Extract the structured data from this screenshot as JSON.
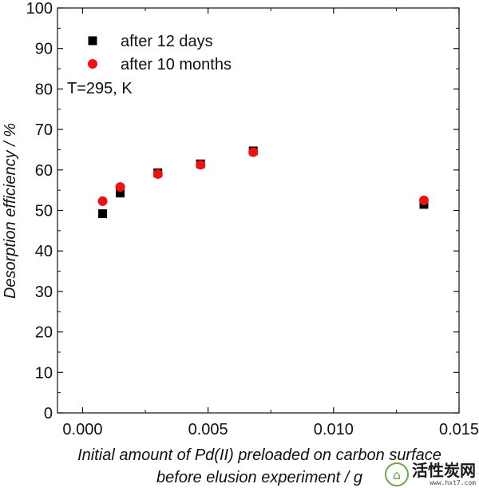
{
  "chart_data": {
    "type": "scatter",
    "title": "",
    "xlabel_lines": [
      "Initial amount of Pd(II) preloaded on carbon surface",
      "before elusion experiment / g"
    ],
    "ylabel": "Desorption efficiency / %",
    "xlim": [
      -0.001,
      0.015
    ],
    "ylim": [
      0,
      100
    ],
    "xticks": [
      0.0,
      0.005,
      0.01,
      0.015
    ],
    "xtick_labels": [
      "0.000",
      "0.005",
      "0.010",
      "0.015"
    ],
    "yticks": [
      0,
      10,
      20,
      30,
      40,
      50,
      60,
      70,
      80,
      90,
      100
    ],
    "ytick_labels": [
      "0",
      "10",
      "20",
      "30",
      "40",
      "50",
      "60",
      "70",
      "80",
      "90",
      "100"
    ],
    "grid": false,
    "legend_position": "top-left",
    "annotation": "T=295, K",
    "series": [
      {
        "name": "after 12 days",
        "marker": "square",
        "color": "#000000",
        "points": [
          {
            "x": 0.0008,
            "y": 49.2
          },
          {
            "x": 0.0015,
            "y": 54.3
          },
          {
            "x": 0.003,
            "y": 59.3
          },
          {
            "x": 0.0047,
            "y": 61.5
          },
          {
            "x": 0.0068,
            "y": 64.7
          },
          {
            "x": 0.0136,
            "y": 51.5
          }
        ]
      },
      {
        "name": "after 10 months",
        "marker": "circle",
        "color": "#ee1111",
        "points": [
          {
            "x": 0.0008,
            "y": 52.3
          },
          {
            "x": 0.0015,
            "y": 55.8
          },
          {
            "x": 0.003,
            "y": 59.0
          },
          {
            "x": 0.0047,
            "y": 61.3
          },
          {
            "x": 0.0068,
            "y": 64.4
          },
          {
            "x": 0.0136,
            "y": 52.5
          }
        ]
      }
    ]
  },
  "watermark": {
    "logo_glyph": "⌂",
    "text": "活性炭网",
    "url": "www.hxt7.com"
  }
}
